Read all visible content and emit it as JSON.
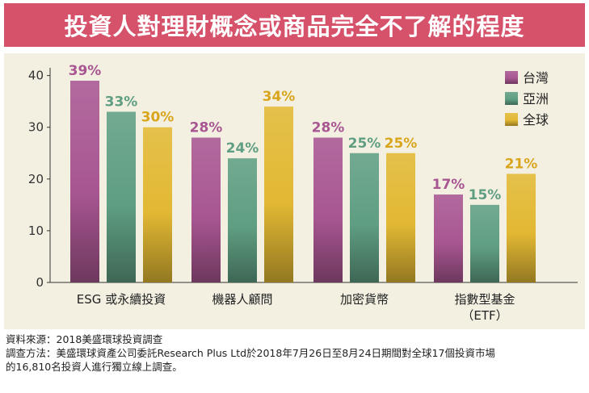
{
  "title": "投資人對理財概念或商品完全不了解的程度",
  "chart_data": {
    "type": "bar",
    "title": "投資人對理財概念或商品完全不了解的程度",
    "categories": [
      [
        "ESG 或永續投資"
      ],
      [
        "機器人顧問"
      ],
      [
        "加密貨幣"
      ],
      [
        "指數型基金",
        "（ETF）"
      ]
    ],
    "series": [
      {
        "name": "台灣",
        "color": "#a85691",
        "values": [
          39,
          28,
          28,
          17
        ],
        "labels": [
          "39%",
          "28%",
          "28%",
          "17%"
        ]
      },
      {
        "name": "亞洲",
        "color": "#5f9e82",
        "values": [
          33,
          24,
          25,
          15
        ],
        "labels": [
          "33%",
          "24%",
          "25%",
          "15%"
        ]
      },
      {
        "name": "全球",
        "color": "#e2b833",
        "values": [
          30,
          34,
          25,
          21
        ],
        "labels": [
          "30%",
          "34%",
          "25%",
          "21%"
        ]
      }
    ],
    "yticks": [
      0,
      10,
      20,
      30,
      40
    ],
    "ylim": [
      0,
      41.5
    ],
    "xlabel": "",
    "ylabel": "",
    "grid": false,
    "legend": "top-right"
  },
  "footnotes": {
    "source": "資料來源：2018美盛環球投資調查",
    "method_line1": "調查方法：美盛環球資產公司委託Research Plus Ltd於2018年7月26日至8月24日期間對全球17個投資市場",
    "method_line2": "的16,810名投資人進行獨立線上調查。"
  }
}
